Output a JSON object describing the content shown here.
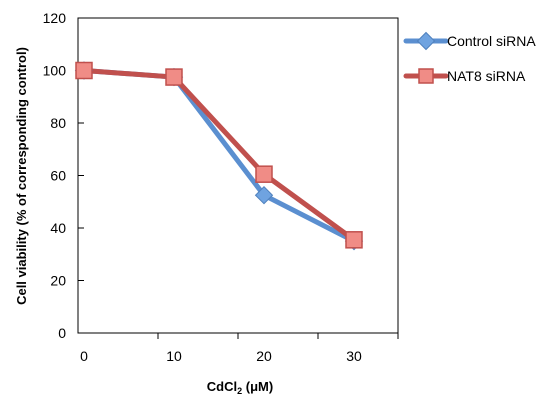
{
  "chart_data": {
    "type": "line",
    "x": [
      0,
      10,
      20,
      30
    ],
    "xlabel": "CdCl",
    "xlabel_sub": "2",
    "xlabel_unit": " (μM)",
    "ylabel": "Cell viability (% of corresponding control)",
    "xlim": [
      0,
      30
    ],
    "ylim": [
      0,
      120
    ],
    "x_ticks": [
      0,
      10,
      20,
      30
    ],
    "y_ticks": [
      0,
      20,
      40,
      60,
      80,
      100,
      120
    ],
    "grid": false,
    "legend_position": "right",
    "series": [
      {
        "name": "Control siRNA",
        "values": [
          100,
          97.5,
          52.5,
          35
        ],
        "color": "#5b8fd0",
        "marker": "diamond"
      },
      {
        "name": "NAT8 siRNA",
        "values": [
          100,
          97.5,
          60.5,
          35.5
        ],
        "color": "#c0504d",
        "marker": "square"
      }
    ]
  }
}
